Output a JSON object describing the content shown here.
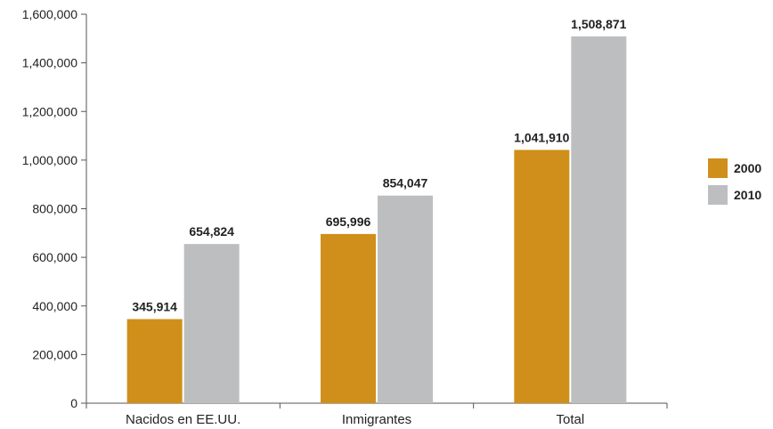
{
  "chart_data": {
    "type": "bar",
    "title": "",
    "xlabel": "",
    "ylabel": "",
    "categories": [
      "Nacidos en EE.UU.",
      "Inmigrantes",
      "Total"
    ],
    "series": [
      {
        "name": "2000",
        "color": "#D08F1A",
        "values": [
          345914,
          695996,
          1041910
        ],
        "labels": [
          "345,914",
          "695,996",
          "1,041,910"
        ]
      },
      {
        "name": "2010",
        "color": "#BDBEC0",
        "values": [
          654824,
          854047,
          1508871
        ],
        "labels": [
          "654,824",
          "854,047",
          "1,508,871"
        ]
      }
    ],
    "ylim": [
      0,
      1600000
    ],
    "yticks": [
      0,
      200000,
      400000,
      600000,
      800000,
      1000000,
      1200000,
      1400000,
      1600000
    ],
    "ytick_labels": [
      "0",
      "200,000",
      "400,000",
      "600,000",
      "800,000",
      "1,000,000",
      "1,200,000",
      "1,400,000",
      "1,600,000"
    ],
    "grid": false,
    "legend_position": "right"
  }
}
